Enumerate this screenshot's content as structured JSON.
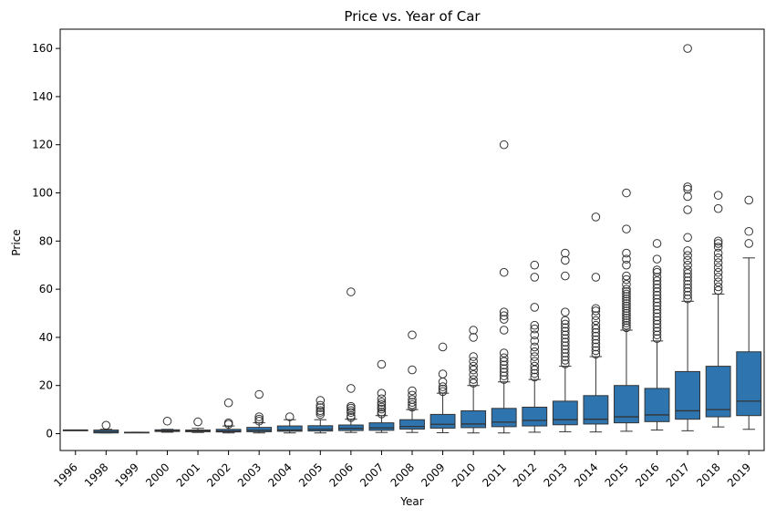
{
  "chart_data": {
    "type": "box",
    "title": "Price vs. Year of Car",
    "xlabel": "Year",
    "ylabel": "Price",
    "ylim": [
      -7,
      168
    ],
    "yticks": [
      0,
      20,
      40,
      60,
      80,
      100,
      120,
      140,
      160
    ],
    "grid": false,
    "legend": "none",
    "box_color": "#2e75b0",
    "line_color": "#333333",
    "categories": [
      "1996",
      "1998",
      "1999",
      "2000",
      "2001",
      "2002",
      "2003",
      "2004",
      "2005",
      "2006",
      "2007",
      "2008",
      "2009",
      "2010",
      "2011",
      "2012",
      "2013",
      "2014",
      "2015",
      "2016",
      "2017",
      "2018",
      "2019"
    ],
    "boxes": [
      {
        "year": "1996",
        "min": 1.5,
        "q1": 1.5,
        "median": 1.5,
        "q3": 1.5,
        "max": 1.5,
        "outliers": []
      },
      {
        "year": "1998",
        "min": 0.3,
        "q1": 0.3,
        "median": 0.8,
        "q3": 1.5,
        "max": 1.8,
        "outliers": [
          3.5
        ]
      },
      {
        "year": "1999",
        "min": 0.5,
        "q1": 0.5,
        "median": 0.5,
        "q3": 0.6,
        "max": 0.6,
        "outliers": []
      },
      {
        "year": "2000",
        "min": 0.6,
        "q1": 0.9,
        "median": 1.2,
        "q3": 1.6,
        "max": 1.8,
        "outliers": [
          5.2
        ]
      },
      {
        "year": "2001",
        "min": 0.5,
        "q1": 0.8,
        "median": 1.1,
        "q3": 1.5,
        "max": 2.2,
        "outliers": [
          4.9
        ]
      },
      {
        "year": "2002",
        "min": 0.3,
        "q1": 0.7,
        "median": 1.1,
        "q3": 1.8,
        "max": 3.2,
        "outliers": [
          3.9,
          4.5,
          12.8
        ]
      },
      {
        "year": "2003",
        "min": 0.3,
        "q1": 0.8,
        "median": 1.4,
        "q3": 2.6,
        "max": 4.5,
        "outliers": [
          5.2,
          6.0,
          7.0,
          16.3
        ]
      },
      {
        "year": "2004",
        "min": 0.3,
        "q1": 1.0,
        "median": 1.5,
        "q3": 3.2,
        "max": 5.8,
        "outliers": [
          7.0
        ]
      },
      {
        "year": "2005",
        "min": 0.3,
        "q1": 1.1,
        "median": 1.8,
        "q3": 3.3,
        "max": 5.8,
        "outliers": [
          8.0,
          8.9,
          9.6,
          10.8,
          11.8,
          13.8
        ]
      },
      {
        "year": "2006",
        "min": 0.5,
        "q1": 1.3,
        "median": 2.2,
        "q3": 3.6,
        "max": 6.0,
        "outliers": [
          6.7,
          7.4,
          8.8,
          9.6,
          10.6,
          11.3,
          18.8,
          58.9
        ]
      },
      {
        "year": "2007",
        "min": 0.5,
        "q1": 1.4,
        "median": 2.4,
        "q3": 4.5,
        "max": 7.5,
        "outliers": [
          8.2,
          9.0,
          10.2,
          11.0,
          12.0,
          13.0,
          14.5,
          16.8,
          28.8
        ]
      },
      {
        "year": "2008",
        "min": 0.5,
        "q1": 1.9,
        "median": 3.0,
        "q3": 5.8,
        "max": 10.0,
        "outliers": [
          11.0,
          12.0,
          13.0,
          14.2,
          16.0,
          17.8,
          26.5,
          41.0
        ]
      },
      {
        "year": "2009",
        "min": 0.4,
        "q1": 2.3,
        "median": 3.9,
        "q3": 8.0,
        "max": 16.8,
        "outliers": [
          17.5,
          18.5,
          19.5,
          21.5,
          24.8,
          36.0
        ]
      },
      {
        "year": "2010",
        "min": 0.3,
        "q1": 2.5,
        "median": 4.0,
        "q3": 9.5,
        "max": 20.0,
        "outliers": [
          21.0,
          22.5,
          24.5,
          26.5,
          28.0,
          30.0,
          32.0,
          40.0,
          43.0
        ]
      },
      {
        "year": "2011",
        "min": 0.3,
        "q1": 2.9,
        "median": 4.8,
        "q3": 10.5,
        "max": 21.5,
        "outliers": [
          22.5,
          24.0,
          25.5,
          27.0,
          28.5,
          30.0,
          31.5,
          33.5,
          43.0,
          47.5,
          49.0,
          50.5,
          67.0,
          120.0
        ]
      },
      {
        "year": "2012",
        "min": 0.6,
        "q1": 3.2,
        "median": 5.5,
        "q3": 11.0,
        "max": 22.5,
        "outliers": [
          23.5,
          25.0,
          26.5,
          28.0,
          30.0,
          32.0,
          34.0,
          36.0,
          38.5,
          41.0,
          43.5,
          45.0,
          52.5,
          65.0,
          70.0
        ]
      },
      {
        "year": "2013",
        "min": 0.8,
        "q1": 3.7,
        "median": 5.8,
        "q3": 13.5,
        "max": 28.0,
        "outliers": [
          29.0,
          30.5,
          32.0,
          33.5,
          35.0,
          36.5,
          38.0,
          39.5,
          41.0,
          42.5,
          44.0,
          45.5,
          47.0,
          50.5,
          65.5,
          72.0,
          75.0
        ]
      },
      {
        "year": "2014",
        "min": 0.7,
        "q1": 4.0,
        "median": 6.0,
        "q3": 15.8,
        "max": 32.0,
        "outliers": [
          33.0,
          34.5,
          36.0,
          37.5,
          39.0,
          40.5,
          42.0,
          43.5,
          45.0,
          47.0,
          49.0,
          51.0,
          52.0,
          65.0,
          90.0
        ]
      },
      {
        "year": "2015",
        "min": 1.0,
        "q1": 4.5,
        "median": 7.0,
        "q3": 20.0,
        "max": 43.0,
        "outliers": [
          44.0,
          45.0,
          46.0,
          47.0,
          48.0,
          49.0,
          50.0,
          51.0,
          52.0,
          53.0,
          54.0,
          55.0,
          56.0,
          57.0,
          58.0,
          59.0,
          60.0,
          62.0,
          64.0,
          65.5,
          70.0,
          72.5,
          75.0,
          85.0,
          100.0
        ]
      },
      {
        "year": "2016",
        "min": 1.5,
        "q1": 5.0,
        "median": 7.8,
        "q3": 18.8,
        "max": 38.5,
        "outliers": [
          39.5,
          41.0,
          42.5,
          44.0,
          45.5,
          47.0,
          48.5,
          50.0,
          51.5,
          53.0,
          54.5,
          56.0,
          57.5,
          59.0,
          60.5,
          62.0,
          63.5,
          65.0,
          67.0,
          68.0,
          72.5,
          79.0
        ]
      },
      {
        "year": "2017",
        "min": 1.2,
        "q1": 6.0,
        "median": 9.5,
        "q3": 25.8,
        "max": 55.0,
        "outliers": [
          56.0,
          57.5,
          59.0,
          60.5,
          62.0,
          63.5,
          65.0,
          66.5,
          68.0,
          70.0,
          72.0,
          74.0,
          76.0,
          81.5,
          93.0,
          98.5,
          101.5,
          102.5,
          160.0
        ]
      },
      {
        "year": "2018",
        "min": 2.8,
        "q1": 7.0,
        "median": 10.0,
        "q3": 28.0,
        "max": 58.0,
        "outliers": [
          59.5,
          61.0,
          63.0,
          65.0,
          67.0,
          69.0,
          71.0,
          73.0,
          75.0,
          77.5,
          79.0,
          80.0,
          93.5,
          99.0
        ]
      },
      {
        "year": "2019",
        "min": 1.8,
        "q1": 7.5,
        "median": 13.5,
        "q3": 34.0,
        "max": 73.0,
        "outliers": [
          79.0,
          84.0,
          97.0
        ]
      }
    ]
  }
}
